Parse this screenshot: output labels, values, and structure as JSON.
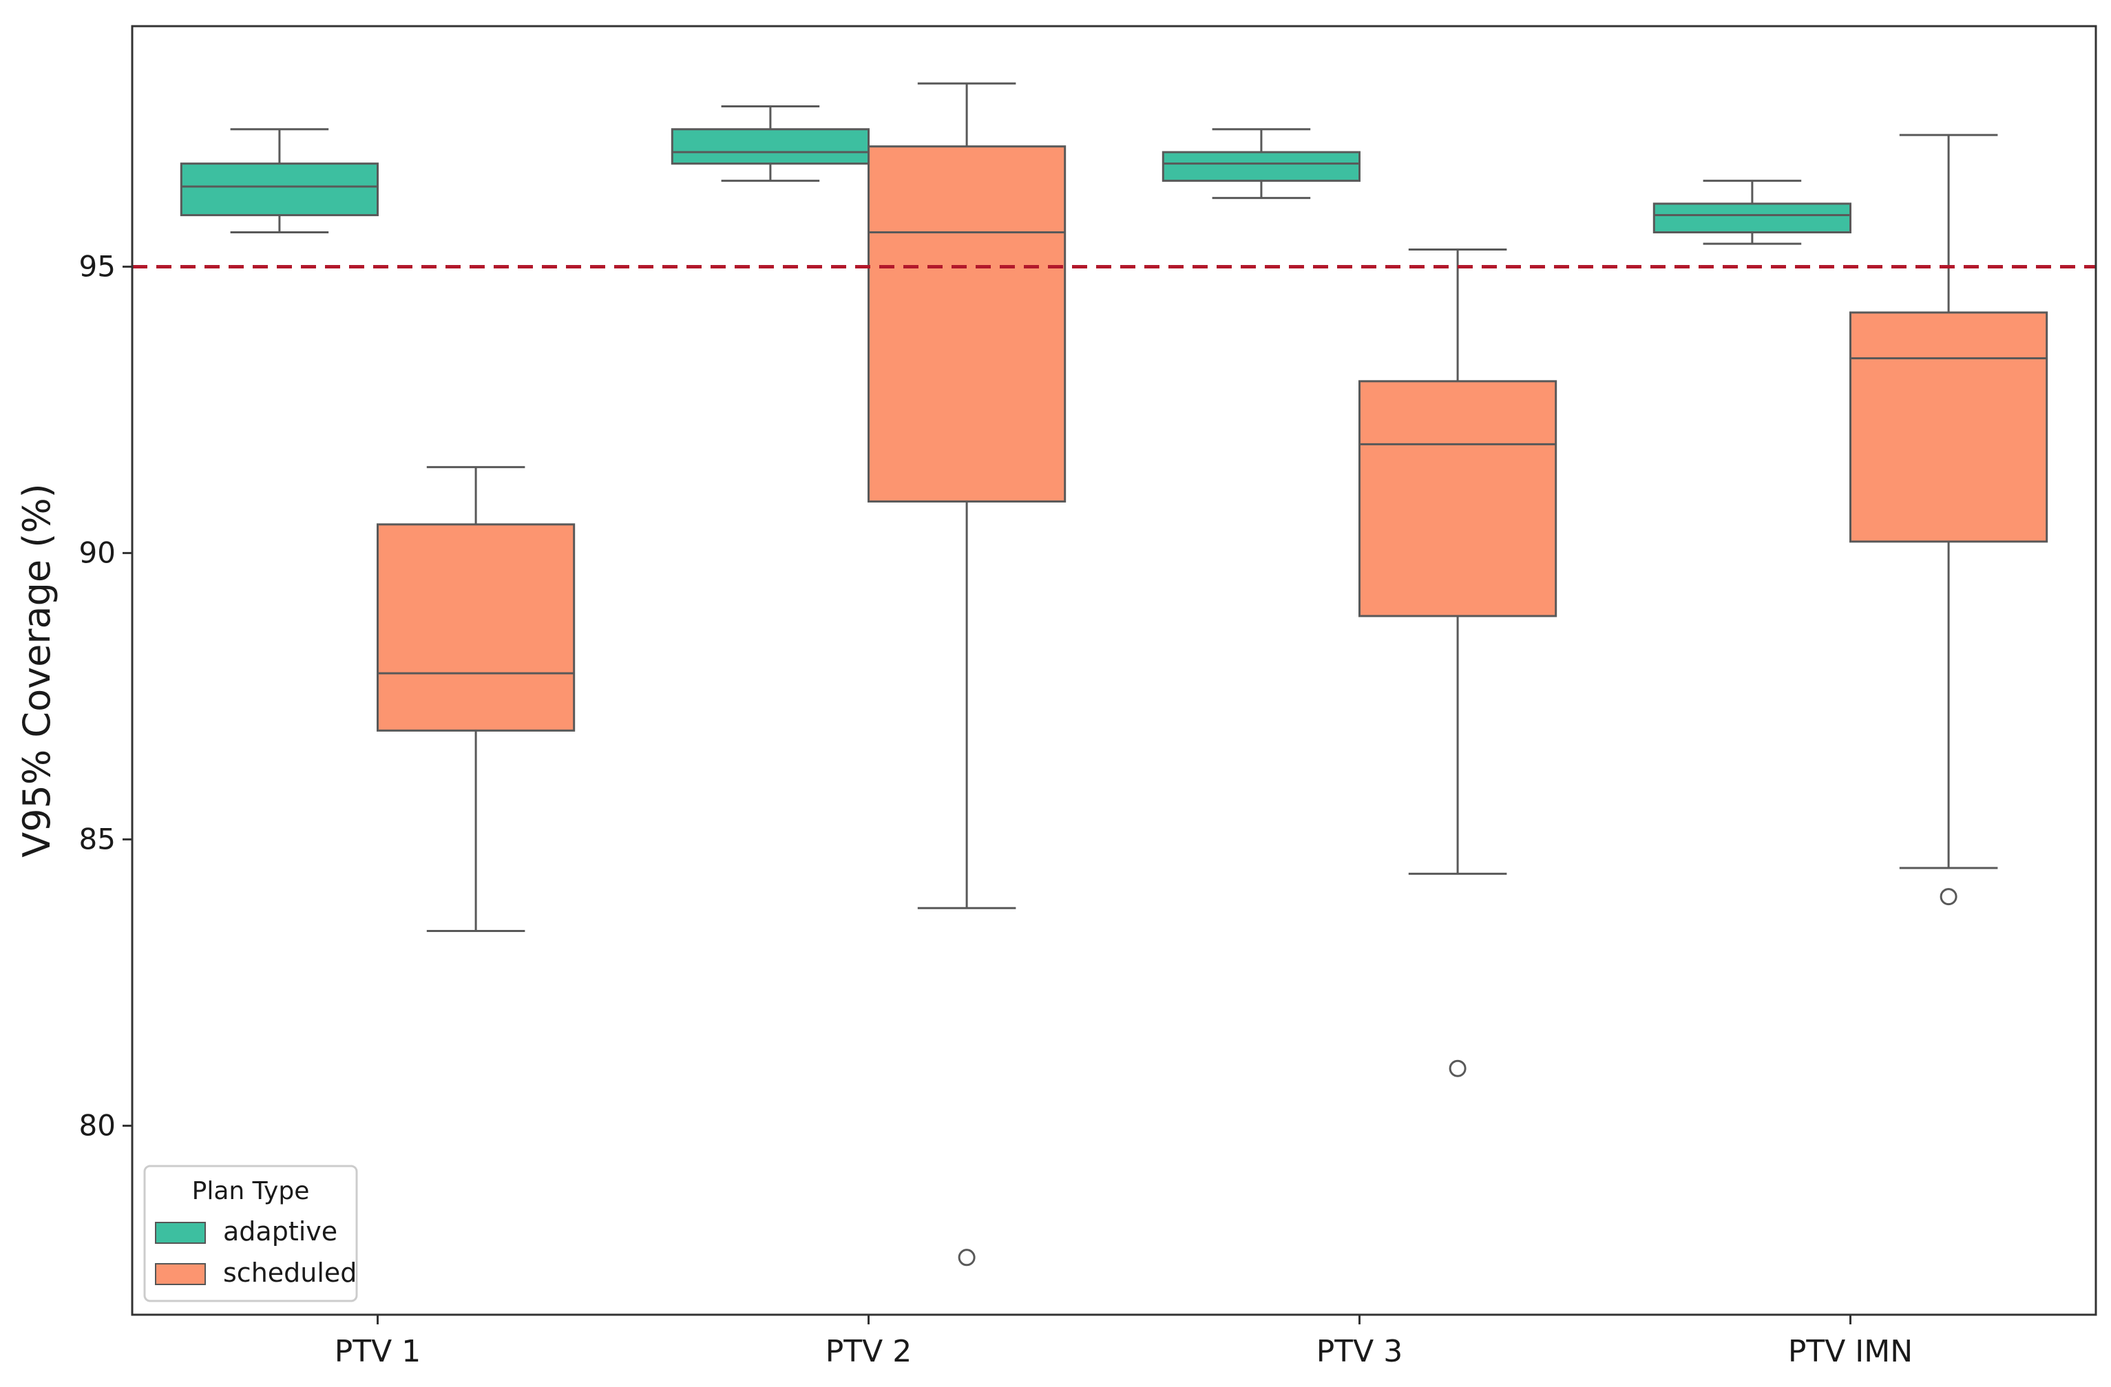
{
  "chart_data": {
    "type": "box",
    "title": "",
    "xlabel": "",
    "ylabel": "V95% Coverage (%)",
    "ylim": [
      76.7,
      99.2
    ],
    "yticks": [
      80,
      85,
      90,
      95
    ],
    "categories": [
      "PTV 1",
      "PTV 2",
      "PTV 3",
      "PTV IMN"
    ],
    "grid": false,
    "legend_position": "bottom-left",
    "legend_title": "Plan Type",
    "reference_line": {
      "y": 95,
      "style": "dashed",
      "color": "#b2182b"
    },
    "series": [
      {
        "name": "adaptive",
        "color": "#3dbfa0",
        "boxes": [
          {
            "category": "PTV 1",
            "whislo": 95.6,
            "q1": 95.9,
            "median": 96.4,
            "q3": 96.8,
            "whishi": 97.4,
            "fliers": []
          },
          {
            "category": "PTV 2",
            "whislo": 96.5,
            "q1": 96.8,
            "median": 97.0,
            "q3": 97.4,
            "whishi": 97.8,
            "fliers": []
          },
          {
            "category": "PTV 3",
            "whislo": 96.2,
            "q1": 96.5,
            "median": 96.8,
            "q3": 97.0,
            "whishi": 97.4,
            "fliers": []
          },
          {
            "category": "PTV IMN",
            "whislo": 95.4,
            "q1": 95.6,
            "median": 95.9,
            "q3": 96.1,
            "whishi": 96.5,
            "fliers": []
          }
        ]
      },
      {
        "name": "scheduled",
        "color": "#fc9570",
        "boxes": [
          {
            "category": "PTV 1",
            "whislo": 83.4,
            "q1": 86.9,
            "median": 87.9,
            "q3": 90.5,
            "whishi": 91.5,
            "fliers": []
          },
          {
            "category": "PTV 2",
            "whislo": 83.8,
            "q1": 90.9,
            "median": 95.6,
            "q3": 97.1,
            "whishi": 98.2,
            "fliers": [
              77.7
            ]
          },
          {
            "category": "PTV 3",
            "whislo": 84.4,
            "q1": 88.9,
            "median": 91.9,
            "q3": 93.0,
            "whishi": 95.3,
            "fliers": [
              81.0
            ]
          },
          {
            "category": "PTV IMN",
            "whislo": 84.5,
            "q1": 90.2,
            "median": 93.4,
            "q3": 94.2,
            "whishi": 97.3,
            "fliers": [
              84.0
            ]
          }
        ]
      }
    ]
  }
}
